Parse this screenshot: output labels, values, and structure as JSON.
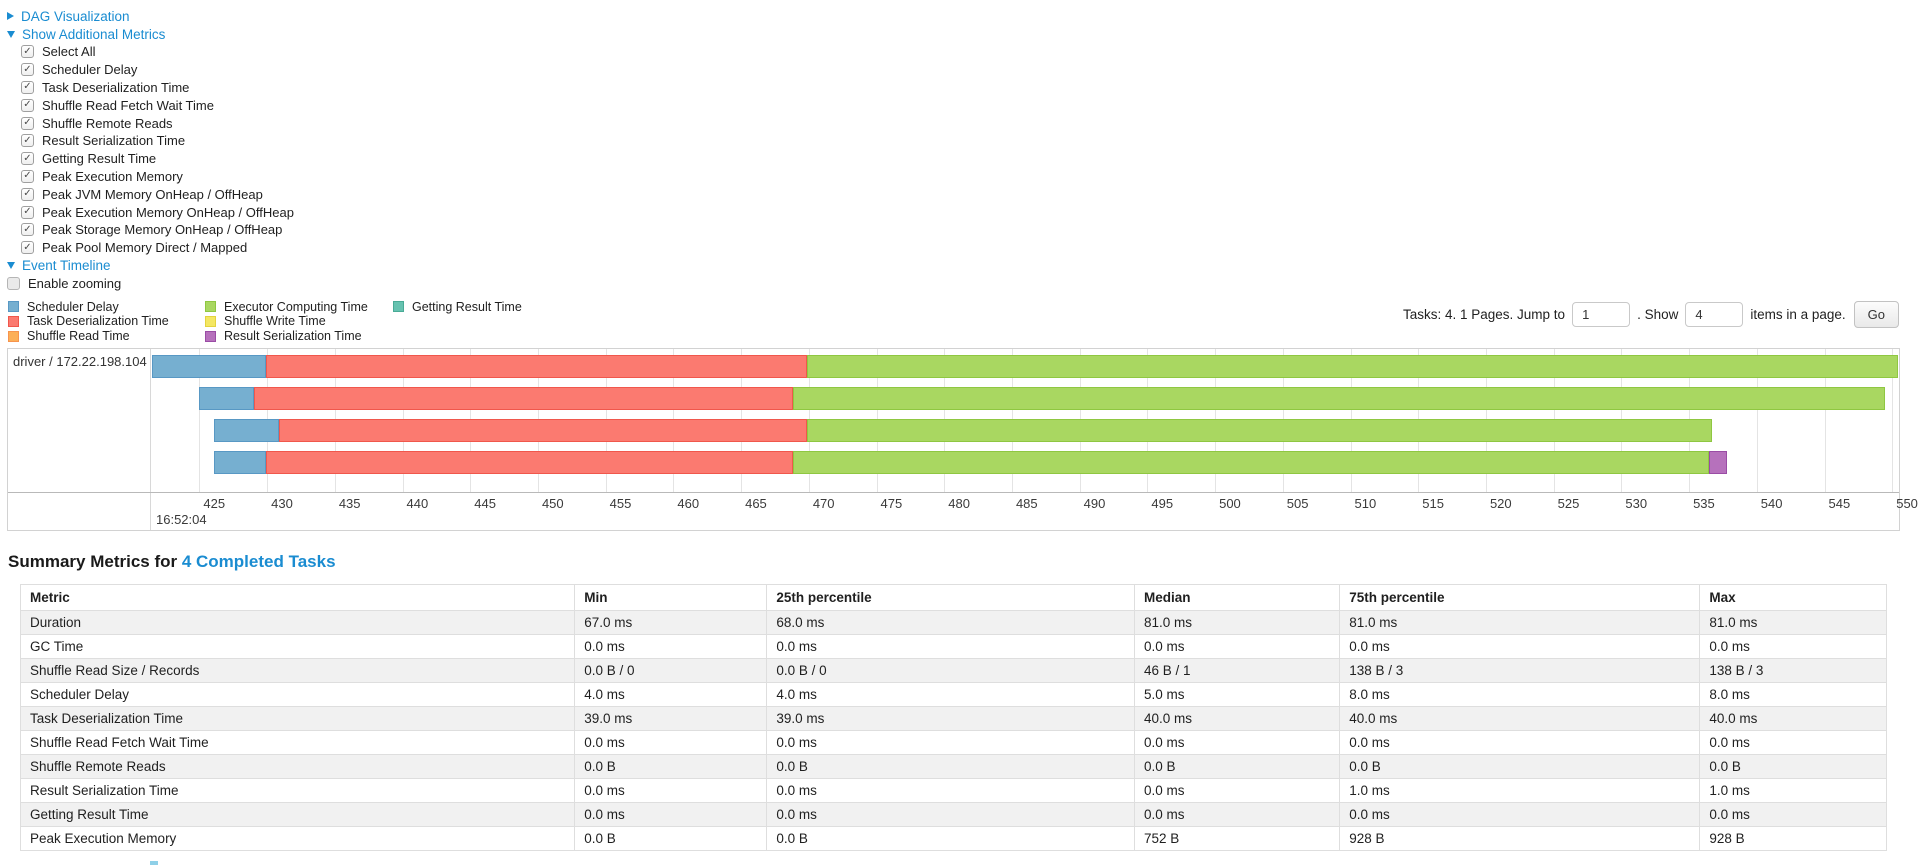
{
  "links": {
    "dag": "DAG Visualization",
    "metrics": "Show Additional Metrics",
    "timeline": "Event Timeline"
  },
  "metrics_panel": {
    "items": [
      "Select All",
      "Scheduler Delay",
      "Task Deserialization Time",
      "Shuffle Read Fetch Wait Time",
      "Shuffle Remote Reads",
      "Result Serialization Time",
      "Getting Result Time",
      "Peak Execution Memory",
      "Peak JVM Memory OnHeap / OffHeap",
      "Peak Execution Memory OnHeap / OffHeap",
      "Peak Storage Memory OnHeap / OffHeap",
      "Peak Pool Memory Direct / Mapped"
    ],
    "enable_zooming": "Enable zooming"
  },
  "colors": {
    "scheduler_delay": {
      "fill": "#76AFD0",
      "border": "#5898C4"
    },
    "task_deserialization": {
      "fill": "#FB7A70",
      "border": "#F0574C"
    },
    "shuffle_read": {
      "fill": "#FCAF57",
      "border": "#F7944D"
    },
    "executor_computing": {
      "fill": "#A9D761",
      "border": "#8FC741"
    },
    "shuffle_write": {
      "fill": "#F4E762",
      "border": "#E3D33F"
    },
    "result_serialization": {
      "fill": "#B671BC",
      "border": "#9A4CA5"
    },
    "getting_result": {
      "fill": "#66C2B0",
      "border": "#49AB96"
    },
    "link_blue": "#1a8cd1"
  },
  "legend": {
    "columns": [
      [
        {
          "key": "scheduler_delay",
          "label": "Scheduler Delay"
        },
        {
          "key": "task_deserialization",
          "label": "Task Deserialization Time"
        },
        {
          "key": "shuffle_read",
          "label": "Shuffle Read Time"
        }
      ],
      [
        {
          "key": "executor_computing",
          "label": "Executor Computing Time"
        },
        {
          "key": "shuffle_write",
          "label": "Shuffle Write Time"
        },
        {
          "key": "result_serialization",
          "label": "Result Serialization Time"
        }
      ],
      [
        {
          "key": "getting_result",
          "label": "Getting Result Time"
        }
      ]
    ]
  },
  "pagination": {
    "prefix": "Tasks: 4. 1 Pages. Jump to",
    "jump_value": "1",
    "mid": ". Show",
    "show_value": "4",
    "suffix": "items in a page.",
    "go": "Go"
  },
  "timeline": {
    "group_label": "driver / 172.22.198.104",
    "axis_min": 421.5,
    "axis_max": 550.5,
    "ticks": [
      425,
      430,
      435,
      440,
      445,
      450,
      455,
      460,
      465,
      470,
      475,
      480,
      485,
      490,
      495,
      500,
      505,
      510,
      515,
      520,
      525,
      530,
      535,
      540,
      545,
      550
    ],
    "major_label": "16:52:04",
    "rows": [
      {
        "segments": [
          {
            "key": "scheduler_delay",
            "start": 421.5,
            "end": 429.9
          },
          {
            "key": "task_deserialization",
            "start": 429.9,
            "end": 469.9
          },
          {
            "key": "executor_computing",
            "start": 469.9,
            "end": 550.4
          }
        ]
      },
      {
        "segments": [
          {
            "key": "scheduler_delay",
            "start": 425.0,
            "end": 429.0
          },
          {
            "key": "task_deserialization",
            "start": 429.0,
            "end": 468.8
          },
          {
            "key": "executor_computing",
            "start": 468.8,
            "end": 549.5
          }
        ]
      },
      {
        "segments": [
          {
            "key": "scheduler_delay",
            "start": 426.1,
            "end": 430.9
          },
          {
            "key": "task_deserialization",
            "start": 430.9,
            "end": 469.9
          },
          {
            "key": "executor_computing",
            "start": 469.9,
            "end": 536.7
          }
        ]
      },
      {
        "segments": [
          {
            "key": "scheduler_delay",
            "start": 426.1,
            "end": 429.9
          },
          {
            "key": "task_deserialization",
            "start": 429.9,
            "end": 468.8
          },
          {
            "key": "executor_computing",
            "start": 468.8,
            "end": 536.5
          },
          {
            "key": "result_serialization",
            "start": 536.5,
            "end": 537.8
          }
        ]
      }
    ]
  },
  "summary": {
    "heading_prefix": "Summary Metrics for ",
    "heading_link": "4 Completed Tasks",
    "table": {
      "headers": [
        "Metric",
        "Min",
        "25th percentile",
        "Median",
        "75th percentile",
        "Max"
      ],
      "col_widths": [
        "29.7%",
        "10.3%",
        "19.7%",
        "11.0%",
        "19.3%",
        "10.0%"
      ],
      "rows": [
        {
          "metric": "Duration",
          "values": [
            "67.0 ms",
            "68.0 ms",
            "81.0 ms",
            "81.0 ms",
            "81.0 ms"
          ]
        },
        {
          "metric": "GC Time",
          "values": [
            "0.0 ms",
            "0.0 ms",
            "0.0 ms",
            "0.0 ms",
            "0.0 ms"
          ]
        },
        {
          "metric": "Shuffle Read Size / Records",
          "values": [
            "0.0 B / 0",
            "0.0 B / 0",
            "46 B / 1",
            "138 B / 3",
            "138 B / 3"
          ]
        },
        {
          "metric": "Scheduler Delay",
          "values": [
            "4.0 ms",
            "4.0 ms",
            "5.0 ms",
            "8.0 ms",
            "8.0 ms"
          ]
        },
        {
          "metric": "Task Deserialization Time",
          "values": [
            "39.0 ms",
            "39.0 ms",
            "40.0 ms",
            "40.0 ms",
            "40.0 ms"
          ]
        },
        {
          "metric": "Shuffle Read Fetch Wait Time",
          "values": [
            "0.0 ms",
            "0.0 ms",
            "0.0 ms",
            "0.0 ms",
            "0.0 ms"
          ]
        },
        {
          "metric": "Shuffle Remote Reads",
          "values": [
            "0.0 B",
            "0.0 B",
            "0.0 B",
            "0.0 B",
            "0.0 B"
          ]
        },
        {
          "metric": "Result Serialization Time",
          "values": [
            "0.0 ms",
            "0.0 ms",
            "0.0 ms",
            "1.0 ms",
            "1.0 ms"
          ]
        },
        {
          "metric": "Getting Result Time",
          "values": [
            "0.0 ms",
            "0.0 ms",
            "0.0 ms",
            "0.0 ms",
            "0.0 ms"
          ]
        },
        {
          "metric": "Peak Execution Memory",
          "values": [
            "0.0 B",
            "0.0 B",
            "752 B",
            "928 B",
            "928 B"
          ]
        }
      ]
    }
  }
}
